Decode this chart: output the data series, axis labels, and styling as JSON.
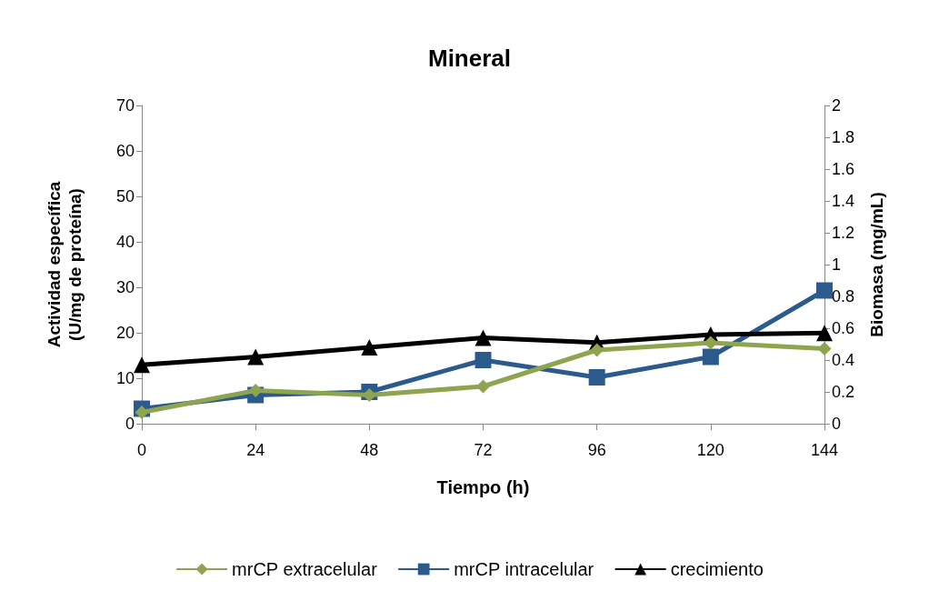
{
  "chart_data": {
    "type": "line",
    "title": "Mineral",
    "xlabel": "Tiempo (h)",
    "ylabel": "Actividad específica\n(U/mg de proteína)",
    "y2label": "Biomasa (mg/mL)",
    "categories": [
      "0",
      "24",
      "48",
      "72",
      "96",
      "120",
      "144"
    ],
    "series": [
      {
        "name": "mrCP extracelular",
        "color": "#8ea44f",
        "marker": "diamond",
        "values": [
          2.5,
          7.3,
          6.3,
          8.2,
          16.2,
          17.8,
          16.5
        ]
      },
      {
        "name": "mrCP intracelular",
        "color": "#2a5b8c",
        "marker": "square",
        "values": [
          3.3,
          6.3,
          7,
          14,
          10.2,
          14.7,
          29.3
        ]
      },
      {
        "name": "crecimiento",
        "color": "#000000",
        "marker": "triangle",
        "axis": "y2",
        "values": [
          0.37,
          0.42,
          0.48,
          0.54,
          0.51,
          0.56,
          0.57
        ]
      }
    ],
    "ylim": [
      0,
      70
    ],
    "yticks": [
      0,
      10,
      20,
      30,
      40,
      50,
      60,
      70
    ],
    "y2lim": [
      0,
      2
    ],
    "y2ticks": [
      0,
      0.2,
      0.4,
      0.6,
      0.8,
      1,
      1.2,
      1.4,
      1.6,
      1.8,
      2
    ],
    "grid": false,
    "legend": "bottom",
    "line_style": "solid"
  }
}
